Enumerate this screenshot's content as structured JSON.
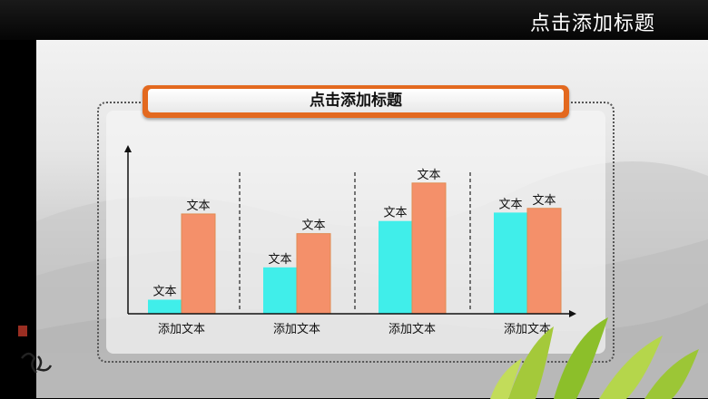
{
  "header": {
    "title": "点击添加标题"
  },
  "banner": {
    "title": "点击添加标题"
  },
  "chart_data": {
    "type": "bar",
    "categories": [
      "添加文本",
      "添加文本",
      "添加文本",
      "添加文本"
    ],
    "series": [
      {
        "color": "#40eeea",
        "values": [
          1,
          3.3,
          6.6,
          7.2
        ],
        "labels": [
          "文本",
          "文本",
          "文本",
          "文本"
        ]
      },
      {
        "color": "#f4906a",
        "values": [
          7.1,
          5.7,
          9.3,
          7.5
        ],
        "labels": [
          "文本",
          "文本",
          "文本",
          "文本"
        ]
      }
    ],
    "ylim": [
      0,
      12
    ],
    "grid": false,
    "colors": {
      "bar_border": "#e08b52",
      "axis": "#111111",
      "divider": "#222222"
    }
  }
}
